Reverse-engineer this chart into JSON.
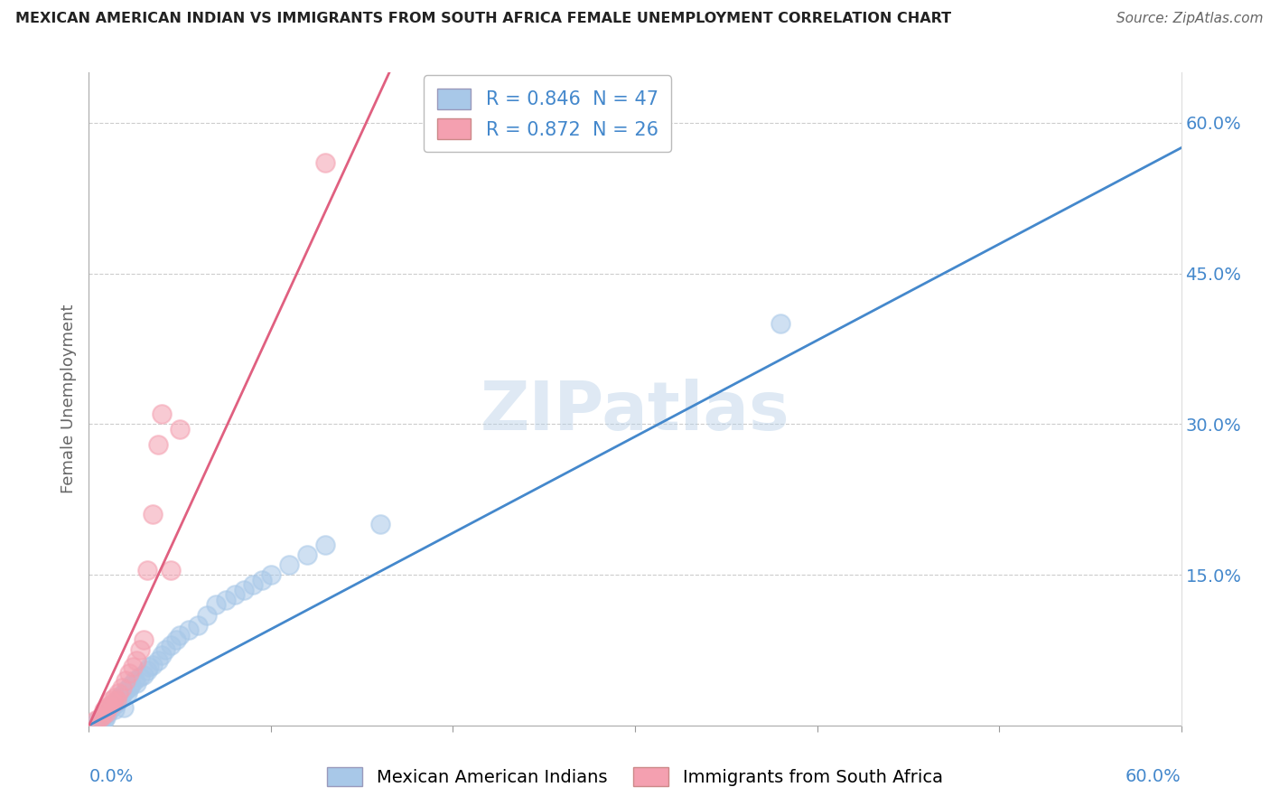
{
  "title": "MEXICAN AMERICAN INDIAN VS IMMIGRANTS FROM SOUTH AFRICA FEMALE UNEMPLOYMENT CORRELATION CHART",
  "source": "Source: ZipAtlas.com",
  "ylabel": "Female Unemployment",
  "watermark": "ZIPatlas",
  "legend_blue_r": "R = 0.846",
  "legend_blue_n": "N = 47",
  "legend_pink_r": "R = 0.872",
  "legend_pink_n": "N = 26",
  "blue_color": "#a8c8e8",
  "pink_color": "#f4a0b0",
  "blue_line_color": "#4488cc",
  "pink_line_color": "#e06080",
  "blue_scatter_x": [
    0.005,
    0.007,
    0.008,
    0.009,
    0.01,
    0.011,
    0.012,
    0.013,
    0.014,
    0.015,
    0.016,
    0.017,
    0.018,
    0.019,
    0.02,
    0.021,
    0.022,
    0.023,
    0.025,
    0.026,
    0.028,
    0.03,
    0.032,
    0.033,
    0.035,
    0.038,
    0.04,
    0.042,
    0.045,
    0.048,
    0.05,
    0.055,
    0.06,
    0.065,
    0.07,
    0.075,
    0.08,
    0.085,
    0.09,
    0.095,
    0.1,
    0.11,
    0.12,
    0.13,
    0.16,
    0.38,
    0.008
  ],
  "blue_scatter_y": [
    0.005,
    0.007,
    0.01,
    0.008,
    0.012,
    0.015,
    0.018,
    0.02,
    0.016,
    0.022,
    0.025,
    0.028,
    0.03,
    0.018,
    0.035,
    0.032,
    0.038,
    0.04,
    0.045,
    0.042,
    0.048,
    0.05,
    0.055,
    0.058,
    0.06,
    0.065,
    0.07,
    0.075,
    0.08,
    0.085,
    0.09,
    0.095,
    0.1,
    0.11,
    0.12,
    0.125,
    0.13,
    0.135,
    0.14,
    0.145,
    0.15,
    0.16,
    0.17,
    0.18,
    0.2,
    0.4,
    0.005
  ],
  "pink_scatter_x": [
    0.004,
    0.006,
    0.007,
    0.008,
    0.009,
    0.01,
    0.011,
    0.012,
    0.013,
    0.014,
    0.015,
    0.016,
    0.018,
    0.02,
    0.022,
    0.024,
    0.026,
    0.028,
    0.03,
    0.032,
    0.035,
    0.038,
    0.04,
    0.045,
    0.05,
    0.13
  ],
  "pink_scatter_y": [
    0.005,
    0.008,
    0.01,
    0.015,
    0.012,
    0.018,
    0.02,
    0.025,
    0.022,
    0.028,
    0.025,
    0.032,
    0.038,
    0.045,
    0.052,
    0.058,
    0.065,
    0.075,
    0.085,
    0.155,
    0.21,
    0.28,
    0.31,
    0.155,
    0.295,
    0.56
  ],
  "blue_line_x": [
    0.0,
    0.6
  ],
  "blue_line_y": [
    0.0,
    0.575
  ],
  "pink_line_x": [
    0.0,
    0.165
  ],
  "pink_line_y": [
    0.0,
    0.65
  ],
  "xlim": [
    0.0,
    0.6
  ],
  "ylim": [
    0.0,
    0.65
  ],
  "yticks": [
    0.0,
    0.15,
    0.3,
    0.45,
    0.6
  ],
  "yticklabels": [
    "",
    "15.0%",
    "30.0%",
    "45.0%",
    "60.0%"
  ],
  "figsize": [
    14.06,
    8.92
  ],
  "dpi": 100
}
